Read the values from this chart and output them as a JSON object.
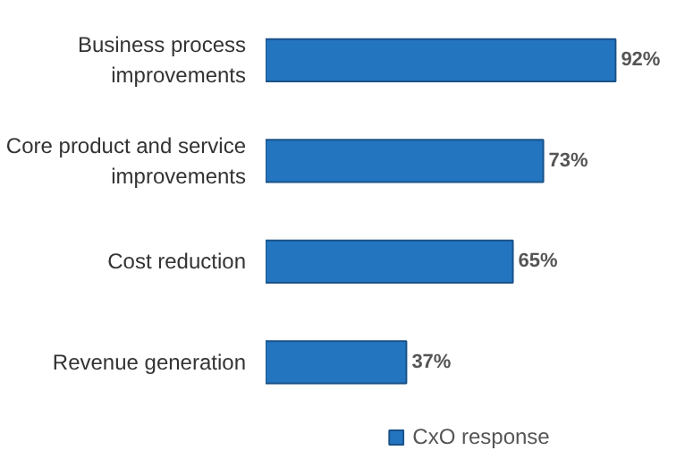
{
  "chart_data": {
    "type": "bar",
    "orientation": "horizontal",
    "categories": [
      "Business process improvements",
      "Core product and service improvements",
      "Cost reduction",
      "Revenue generation"
    ],
    "series": [
      {
        "name": "CxO response",
        "color": "#2475c0",
        "values": [
          92,
          73,
          65,
          37
        ],
        "value_labels": [
          "92%",
          "73%",
          "65%",
          "37%"
        ]
      }
    ],
    "legend": "bottom"
  }
}
